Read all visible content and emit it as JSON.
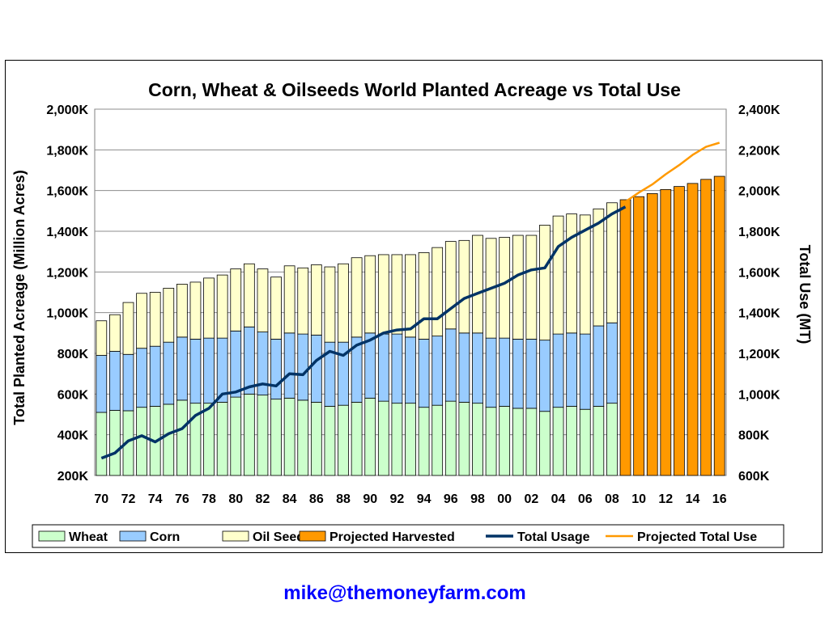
{
  "chart_data": {
    "type": "bar",
    "title": "Corn, Wheat & Oilseeds World Planted Acreage vs Total Use",
    "ylabel": "Total Planted Acreage (Million Acres)",
    "y2label": "Total Use (MT)",
    "ylim": [
      200,
      2000
    ],
    "y2lim": [
      600,
      2400
    ],
    "y_ticks": [
      "200K",
      "400K",
      "600K",
      "800K",
      "1,000K",
      "1,200K",
      "1,400K",
      "1,600K",
      "1,800K",
      "2,000K"
    ],
    "y2_ticks": [
      "600K",
      "800K",
      "1,000K",
      "1,200K",
      "1,400K",
      "1,600K",
      "1,800K",
      "2,000K",
      "2,200K",
      "2,400K"
    ],
    "grid": true,
    "legend_position": "bottom",
    "x_tick_labels": [
      "70",
      "72",
      "74",
      "76",
      "78",
      "80",
      "82",
      "84",
      "86",
      "88",
      "90",
      "92",
      "94",
      "96",
      "98",
      "00",
      "02",
      "04",
      "06",
      "08",
      "10",
      "12",
      "14",
      "16"
    ],
    "categories": [
      "70",
      "71",
      "72",
      "73",
      "74",
      "75",
      "76",
      "77",
      "78",
      "79",
      "80",
      "81",
      "82",
      "83",
      "84",
      "85",
      "86",
      "87",
      "88",
      "89",
      "90",
      "91",
      "92",
      "93",
      "94",
      "95",
      "96",
      "97",
      "98",
      "99",
      "00",
      "01",
      "02",
      "03",
      "04",
      "05",
      "06",
      "07",
      "08",
      "09",
      "10",
      "11",
      "12",
      "13",
      "14",
      "15",
      "16"
    ],
    "colors": {
      "wheat": "#ccffcc",
      "corn": "#99ccff",
      "oilseeds": "#ffffcc",
      "projected": "#ff9900",
      "total_usage": "#003366",
      "projected_total_use": "#ff9900"
    },
    "series": [
      {
        "name": "Wheat",
        "type": "stacked-bar",
        "axis": "left",
        "values": [
          510,
          520,
          518,
          535,
          540,
          550,
          570,
          555,
          555,
          560,
          585,
          600,
          595,
          575,
          580,
          570,
          560,
          540,
          545,
          560,
          580,
          565,
          555,
          555,
          535,
          545,
          565,
          560,
          555,
          535,
          540,
          530,
          530,
          515,
          535,
          540,
          525,
          540,
          555,
          null,
          null,
          null,
          null,
          null,
          null,
          null,
          null
        ]
      },
      {
        "name": "Corn",
        "type": "stacked-bar",
        "axis": "left",
        "values": [
          280,
          290,
          277,
          290,
          295,
          305,
          310,
          315,
          320,
          315,
          325,
          330,
          310,
          295,
          320,
          325,
          330,
          315,
          310,
          320,
          320,
          330,
          340,
          325,
          335,
          340,
          355,
          340,
          345,
          340,
          335,
          340,
          340,
          350,
          360,
          360,
          370,
          395,
          395,
          null,
          null,
          null,
          null,
          null,
          null,
          null,
          null
        ]
      },
      {
        "name": "Oil Seeds",
        "type": "stacked-bar",
        "axis": "left",
        "values": [
          170,
          180,
          255,
          270,
          265,
          265,
          260,
          280,
          295,
          310,
          305,
          310,
          310,
          305,
          330,
          325,
          345,
          370,
          385,
          390,
          380,
          390,
          390,
          405,
          425,
          435,
          430,
          455,
          480,
          490,
          495,
          510,
          510,
          565,
          580,
          585,
          585,
          575,
          590,
          null,
          null,
          null,
          null,
          null,
          null,
          null,
          null
        ]
      },
      {
        "name": "Projected Harvested",
        "type": "bar",
        "axis": "left",
        "values": [
          null,
          null,
          null,
          null,
          null,
          null,
          null,
          null,
          null,
          null,
          null,
          null,
          null,
          null,
          null,
          null,
          null,
          null,
          null,
          null,
          null,
          null,
          null,
          null,
          null,
          null,
          null,
          null,
          null,
          null,
          null,
          null,
          null,
          null,
          null,
          null,
          null,
          null,
          null,
          1555,
          1570,
          1585,
          1605,
          1620,
          1635,
          1655,
          1670
        ]
      },
      {
        "name": "Total Usage",
        "type": "line",
        "axis": "right",
        "values": [
          685,
          710,
          770,
          795,
          765,
          805,
          830,
          895,
          930,
          1000,
          1010,
          1035,
          1050,
          1040,
          1100,
          1095,
          1165,
          1210,
          1190,
          1240,
          1265,
          1300,
          1315,
          1320,
          1370,
          1370,
          1420,
          1470,
          1495,
          1520,
          1545,
          1585,
          1610,
          1620,
          1725,
          1770,
          1805,
          1840,
          1885,
          1920,
          null,
          null,
          null,
          null,
          null,
          null,
          null
        ]
      },
      {
        "name": "Projected Total Use",
        "type": "line",
        "axis": "right",
        "values": [
          null,
          null,
          null,
          null,
          null,
          null,
          null,
          null,
          null,
          null,
          null,
          null,
          null,
          null,
          null,
          null,
          null,
          null,
          null,
          null,
          null,
          null,
          null,
          null,
          null,
          null,
          null,
          null,
          null,
          null,
          null,
          null,
          null,
          null,
          null,
          null,
          null,
          null,
          null,
          1945,
          1990,
          2030,
          2080,
          2125,
          2175,
          2215,
          2235
        ]
      }
    ]
  },
  "legend": {
    "items": [
      {
        "label": "Wheat",
        "kind": "box",
        "color": "#ccffcc"
      },
      {
        "label": "Corn",
        "kind": "box",
        "color": "#99ccff"
      },
      {
        "label": "Oil Seeds",
        "kind": "box",
        "color": "#ffffcc"
      },
      {
        "label": "Projected Harvested",
        "kind": "box",
        "color": "#ff9900"
      },
      {
        "label": "Total Usage",
        "kind": "line",
        "color": "#003366"
      },
      {
        "label": "Projected Total Use",
        "kind": "line",
        "color": "#ff9900"
      }
    ]
  },
  "footer": {
    "email": "mike@themoneyfarm.com"
  }
}
